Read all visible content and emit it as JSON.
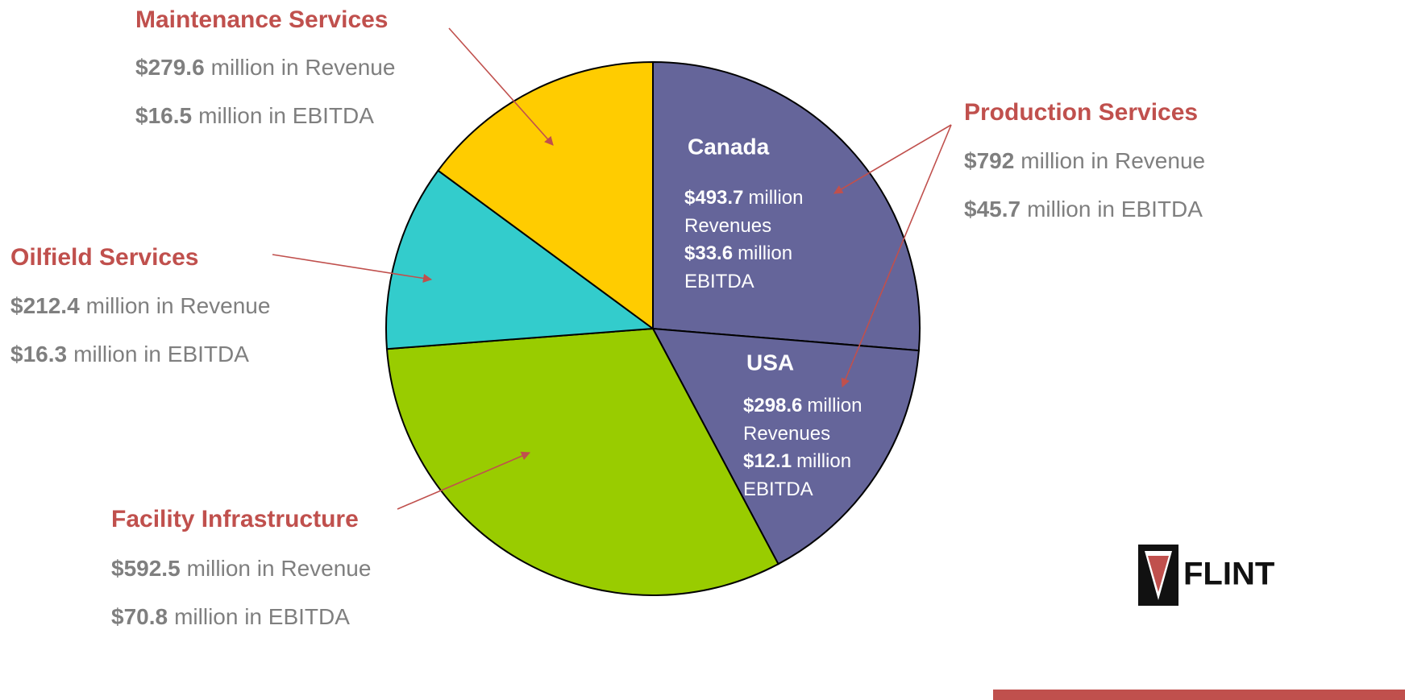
{
  "chart_data": {
    "type": "pie",
    "categories": [
      "Canada",
      "USA",
      "Facility Infrastructure",
      "Oilfield Services",
      "Maintenance Services"
    ],
    "values": [
      493.7,
      298.6,
      592.5,
      212.4,
      279.6
    ],
    "value_labels": [
      "$493.7",
      "$298.6",
      "$592.5",
      "$212.4",
      "$279.6"
    ],
    "ebitda": [
      33.6,
      12.1,
      70.8,
      16.3,
      16.5
    ],
    "ebitda_labels": [
      "$33.6",
      "$12.1",
      "$70.8",
      "$16.3",
      "$16.5"
    ],
    "colors": [
      "#65659a",
      "#65659a",
      "#99cc00",
      "#33cccc",
      "#ffcc00"
    ],
    "revenue_suffix": "million in Revenue",
    "ebitda_suffix": "million in EBITDA",
    "inner_million": "million",
    "inner_revenues": "Revenues",
    "inner_ebitda": "EBITDA",
    "group": {
      "name": "Production Services",
      "value": 792,
      "value_label": "$792",
      "ebitda": 45.7,
      "ebitda_label": "$45.7"
    },
    "logo": "FLINT"
  }
}
